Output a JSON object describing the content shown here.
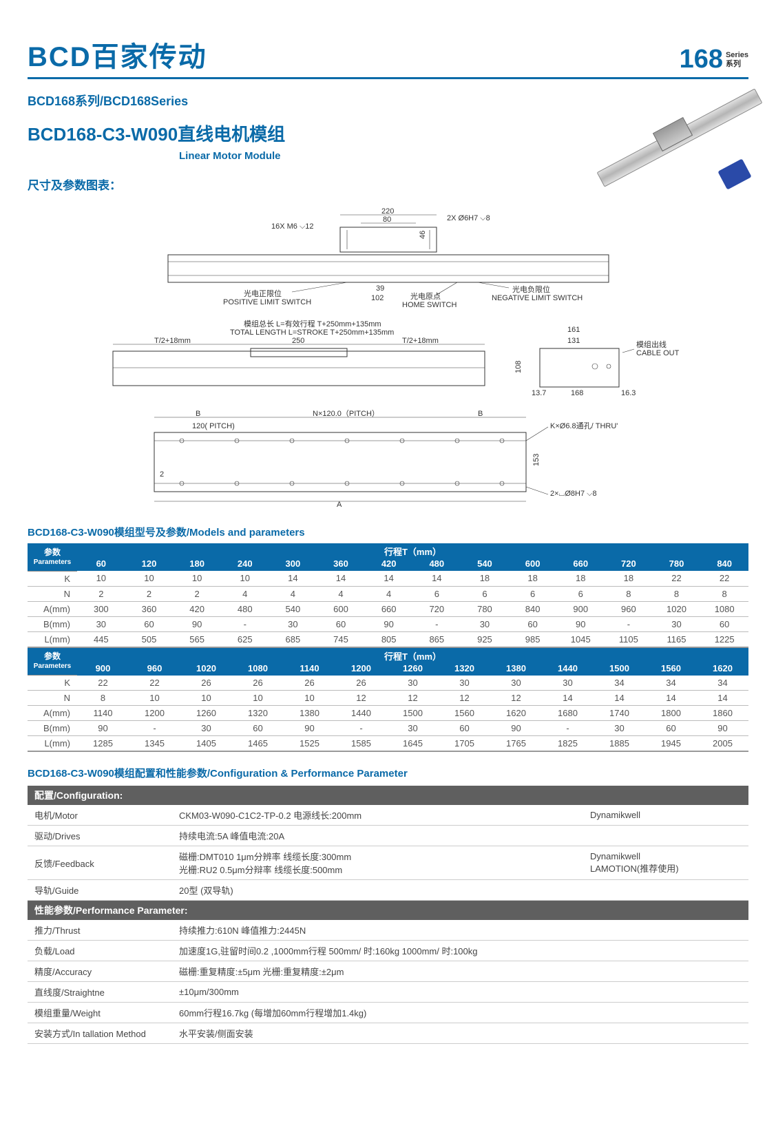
{
  "header": {
    "brand": "BCD百家传动",
    "series_number": "168",
    "series_en": "Series",
    "series_cn": "系列"
  },
  "sub": {
    "series_line": "BCD168系列/BCD168Series",
    "model_title": "BCD168-C3-W090直线电机模组",
    "model_sub": "Linear Motor Module",
    "dim_label": "尺寸及参数图表："
  },
  "diagram": {
    "top": {
      "w_220": "220",
      "w_80": "80",
      "hole_spec": "2X Ø6H7 ⌵8",
      "screw_spec": "16X M6 ⌵12",
      "h_46": "46",
      "pos_cn": "光电正限位",
      "pos_en": "POSITIVE LIMIT SWITCH",
      "home_cn": "光电原点",
      "home_en": "HOME SWITCH",
      "neg_cn": "光电负限位",
      "neg_en": "NEGATIVE LIMIT SWITCH",
      "d_39": "39",
      "d_102": "102"
    },
    "mid": {
      "total_cn": "模组总长 L=有效行程 T+250mm+135mm",
      "total_en": "TOTAL LENGTH  L=STROKE  T+250mm+135mm",
      "seg_left": "T/2+18mm",
      "seg_mid": "250",
      "seg_right": "T/2+18mm",
      "side_w_161": "161",
      "side_w_131": "131",
      "side_h_108": "108",
      "side_13_7": "13.7",
      "side_168": "168",
      "side_16_3": "16.3",
      "cable_cn": "模组出线",
      "cable_en": "CABLE OUT"
    },
    "bot": {
      "b_left": "B",
      "pitch_span": "N×120.0（PITCH）",
      "b_right": "B",
      "pitch_120": "120( PITCH)",
      "thru": "K×Ø6.8通孔/  THRU'",
      "h_153": "153",
      "cb": "2×⌴Ø8H7 ⌵8",
      "a_label": "A",
      "dim_2": "2"
    }
  },
  "param_table": {
    "title": "BCD168-C3-W090模组型号及参数/Models and parameters",
    "corner_cn": "参数",
    "corner_en": "Parameters",
    "travel_label": "行程T（mm）",
    "row_labels": [
      "K",
      "N",
      "A(mm)",
      "B(mm)",
      "L(mm)"
    ],
    "block1_cols": [
      "60",
      "120",
      "180",
      "240",
      "300",
      "360",
      "420",
      "480",
      "540",
      "600",
      "660",
      "720",
      "780",
      "840"
    ],
    "block1_data": {
      "K": [
        "10",
        "10",
        "10",
        "10",
        "14",
        "14",
        "14",
        "14",
        "18",
        "18",
        "18",
        "18",
        "22",
        "22"
      ],
      "N": [
        "2",
        "2",
        "2",
        "4",
        "4",
        "4",
        "4",
        "6",
        "6",
        "6",
        "6",
        "8",
        "8",
        "8"
      ],
      "A(mm)": [
        "300",
        "360",
        "420",
        "480",
        "540",
        "600",
        "660",
        "720",
        "780",
        "840",
        "900",
        "960",
        "1020",
        "1080"
      ],
      "B(mm)": [
        "30",
        "60",
        "90",
        "-",
        "30",
        "60",
        "90",
        "-",
        "30",
        "60",
        "90",
        "-",
        "30",
        "60"
      ],
      "L(mm)": [
        "445",
        "505",
        "565",
        "625",
        "685",
        "745",
        "805",
        "865",
        "925",
        "985",
        "1045",
        "1105",
        "1165",
        "1225"
      ]
    },
    "block2_cols": [
      "900",
      "960",
      "1020",
      "1080",
      "1140",
      "1200",
      "1260",
      "1320",
      "1380",
      "1440",
      "1500",
      "1560",
      "1620"
    ],
    "block2_data": {
      "K": [
        "22",
        "22",
        "26",
        "26",
        "26",
        "26",
        "30",
        "30",
        "30",
        "30",
        "34",
        "34",
        "34"
      ],
      "N": [
        "8",
        "10",
        "10",
        "10",
        "10",
        "12",
        "12",
        "12",
        "12",
        "14",
        "14",
        "14",
        "14"
      ],
      "A(mm)": [
        "1140",
        "1200",
        "1260",
        "1320",
        "1380",
        "1440",
        "1500",
        "1560",
        "1620",
        "1680",
        "1740",
        "1800",
        "1860"
      ],
      "B(mm)": [
        "90",
        "-",
        "30",
        "60",
        "90",
        "-",
        "30",
        "60",
        "90",
        "-",
        "30",
        "60",
        "90"
      ],
      "L(mm)": [
        "1285",
        "1345",
        "1405",
        "1465",
        "1525",
        "1585",
        "1645",
        "1705",
        "1765",
        "1825",
        "1885",
        "1945",
        "2005"
      ]
    }
  },
  "config": {
    "title": "BCD168-C3-W090模组配置和性能参数/Configuration & Performance Parameter",
    "section1": "配置/Configuration:",
    "section2": "性能参数/Performance Parameter:",
    "rows1": [
      {
        "label": "电机/Motor",
        "val": "CKM03-W090-C1C2-TP-0.2   电源线长:200mm",
        "extra": "Dynamikwell"
      },
      {
        "label": "驱动/Drives",
        "val": "持续电流:5A    峰值电流:20A",
        "extra": ""
      },
      {
        "label": "反馈/Feedback",
        "val": "磁栅:DMT010   1μm分辨率    线缆长度:300mm\n光栅:RU2       0.5μm分辩率   线缆长度:500mm",
        "extra": "Dynamikwell\nLAMOTION(推荐使用)"
      },
      {
        "label": "导轨/Guide",
        "val": "20型 (双导轨)",
        "extra": ""
      }
    ],
    "rows2": [
      {
        "label": "推力/Thrust",
        "val": "持续推力:610N    峰值推力:2445N",
        "extra": ""
      },
      {
        "label": "负载/Load",
        "val": "加速度1G,驻留时间0.2 ,1000mm行程    500mm/ 时:160kg    1000mm/ 时:100kg",
        "extra": ""
      },
      {
        "label": "精度/Accuracy",
        "val": "磁栅:重复精度:±5μm    光栅:重复精度:±2μm",
        "extra": ""
      },
      {
        "label": "直线度/Straightne",
        "val": "±10μm/300mm",
        "extra": ""
      },
      {
        "label": "模组重量/Weight",
        "val": "60mm行程16.7kg (每增加60mm行程增加1.4kg)",
        "extra": ""
      },
      {
        "label": "安装方式/In  tallation Method",
        "val": "水平安装/侧面安装",
        "extra": ""
      }
    ]
  },
  "colors": {
    "brand": "#0a6aa8",
    "hdr_bg": "#0a6aa8",
    "section_bg": "#5f5f5f",
    "border": "#bbbbbb"
  }
}
